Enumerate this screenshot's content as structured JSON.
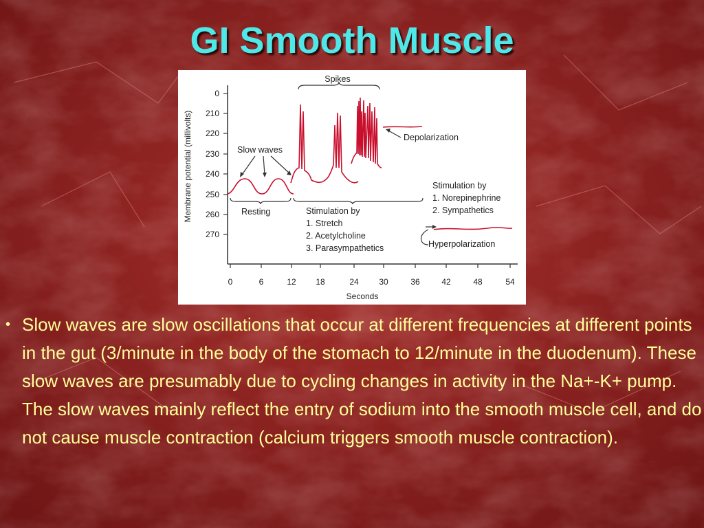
{
  "slide": {
    "title": "GI Smooth Muscle",
    "bullet_marker": "•",
    "bullet_text": "Slow waves are slow oscillations that occur at different frequencies at different points in the gut (3/minute in the body of the stomach to 12/minute in the duodenum).  These slow waves are presumably due to cycling changes in activity in the Na+-K+ pump.  The slow waves mainly reflect the entry of sodium into the smooth muscle cell, and do not cause muscle contraction (calcium triggers smooth muscle contraction).",
    "colors": {
      "title": "#4ee8e8",
      "body_text": "#ffff99",
      "background": "#8e2020",
      "trace": "#c8102e"
    }
  },
  "figure": {
    "y_axis_label": "Membrane potential (millivolts)",
    "x_axis_label": "Seconds",
    "y_ticks": [
      "0",
      "210",
      "220",
      "230",
      "240",
      "250",
      "260",
      "270"
    ],
    "x_ticks": [
      "0",
      "6",
      "12",
      "18",
      "24",
      "30",
      "36",
      "42",
      "48",
      "54"
    ],
    "labels": {
      "spikes": "Spikes",
      "slow_waves": "Slow waves",
      "depolarization": "Depolarization",
      "resting": "Resting",
      "stim_stretch_title": "Stimulation by",
      "stim_stretch_1": "1. Stretch",
      "stim_stretch_2": "2. Acetylcholine",
      "stim_stretch_3": "3. Parasympathetics",
      "stim_ne_title": "Stimulation by",
      "stim_ne_1": "1. Norepinephrine",
      "stim_ne_2": "2. Sympathetics",
      "hyperpolarization": "Hyperpolarization"
    }
  }
}
